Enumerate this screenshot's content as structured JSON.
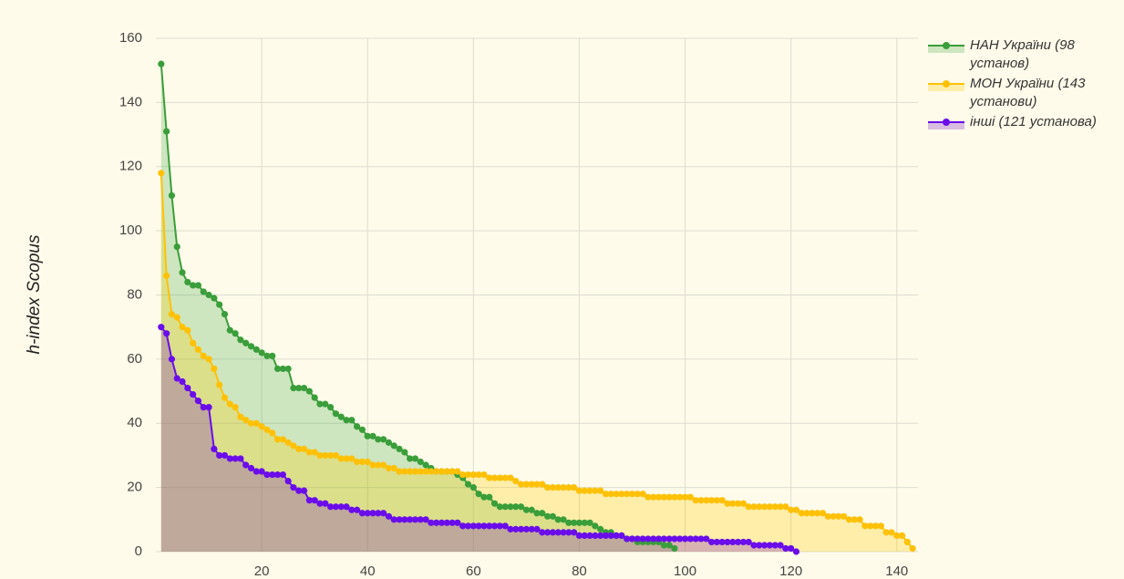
{
  "chart_data": {
    "type": "line",
    "y_label": "h-index Scopus",
    "xlim": [
      0,
      144
    ],
    "xticks": [
      20,
      40,
      60,
      80,
      100,
      120,
      140
    ],
    "ylim": [
      0,
      160
    ],
    "yticks": [
      0,
      20,
      40,
      60,
      80,
      100,
      120,
      140,
      160
    ],
    "grid": true,
    "legend": "right",
    "fill": true,
    "series": [
      {
        "name": "НАН України (98 установ)",
        "color": "#3a9e3a",
        "fill": "rgba(76,175,80,0.28)",
        "x": [
          1,
          2,
          3,
          4,
          5,
          6,
          7,
          8,
          9,
          10,
          11,
          12,
          13,
          14,
          15,
          16,
          17,
          18,
          19,
          20,
          21,
          22,
          23,
          24,
          25,
          26,
          27,
          28,
          29,
          30,
          31,
          32,
          33,
          34,
          35,
          36,
          37,
          38,
          39,
          40,
          41,
          42,
          43,
          44,
          45,
          46,
          47,
          48,
          49,
          50,
          51,
          52,
          53,
          54,
          55,
          56,
          57,
          58,
          59,
          60,
          61,
          62,
          63,
          64,
          65,
          66,
          67,
          68,
          69,
          70,
          71,
          72,
          73,
          74,
          75,
          76,
          77,
          78,
          79,
          80,
          81,
          82,
          83,
          84,
          85,
          86,
          87,
          88,
          89,
          90,
          91,
          92,
          93,
          94,
          95,
          96,
          97,
          98
        ],
        "values": [
          152,
          131,
          111,
          95,
          87,
          84,
          83,
          83,
          81,
          80,
          79,
          77,
          74,
          69,
          68,
          66,
          65,
          64,
          63,
          62,
          61,
          61,
          57,
          57,
          57,
          51,
          51,
          51,
          50,
          48,
          46,
          46,
          45,
          43,
          42,
          41,
          41,
          39,
          38,
          36,
          36,
          35,
          35,
          34,
          33,
          32,
          31,
          29,
          29,
          28,
          27,
          26,
          25,
          25,
          25,
          25,
          24,
          23,
          21,
          20,
          18,
          17,
          17,
          15,
          14,
          14,
          14,
          14,
          14,
          13,
          13,
          12,
          12,
          11,
          11,
          10,
          10,
          9,
          9,
          9,
          9,
          9,
          8,
          7,
          6,
          6,
          5,
          5,
          4,
          4,
          3,
          3,
          3,
          3,
          3,
          2,
          2,
          1
        ]
      },
      {
        "name": "МОН України (143 установи)",
        "color": "#ffc107",
        "fill": "rgba(255,204,0,0.28)",
        "x": [
          1,
          2,
          3,
          4,
          5,
          6,
          7,
          8,
          9,
          10,
          11,
          12,
          13,
          14,
          15,
          16,
          17,
          18,
          19,
          20,
          21,
          22,
          23,
          24,
          25,
          26,
          27,
          28,
          29,
          30,
          31,
          32,
          33,
          34,
          35,
          36,
          37,
          38,
          39,
          40,
          41,
          42,
          43,
          44,
          45,
          46,
          47,
          48,
          49,
          50,
          51,
          52,
          53,
          54,
          55,
          56,
          57,
          58,
          59,
          60,
          61,
          62,
          63,
          64,
          65,
          66,
          67,
          68,
          69,
          70,
          71,
          72,
          73,
          74,
          75,
          76,
          77,
          78,
          79,
          80,
          81,
          82,
          83,
          84,
          85,
          86,
          87,
          88,
          89,
          90,
          91,
          92,
          93,
          94,
          95,
          96,
          97,
          98,
          99,
          100,
          101,
          102,
          103,
          104,
          105,
          106,
          107,
          108,
          109,
          110,
          111,
          112,
          113,
          114,
          115,
          116,
          117,
          118,
          119,
          120,
          121,
          122,
          123,
          124,
          125,
          126,
          127,
          128,
          129,
          130,
          131,
          132,
          133,
          134,
          135,
          136,
          137,
          138,
          139,
          140,
          141,
          142,
          143
        ],
        "values": [
          118,
          86,
          74,
          73,
          70,
          69,
          65,
          63,
          61,
          60,
          57,
          52,
          48,
          46,
          45,
          42,
          41,
          40,
          40,
          39,
          38,
          37,
          35,
          35,
          34,
          33,
          32,
          32,
          31,
          31,
          30,
          30,
          30,
          30,
          29,
          29,
          29,
          28,
          28,
          28,
          27,
          27,
          27,
          26,
          26,
          25,
          25,
          25,
          25,
          25,
          25,
          25,
          25,
          25,
          25,
          25,
          25,
          24,
          24,
          24,
          24,
          24,
          23,
          23,
          23,
          23,
          23,
          22,
          21,
          21,
          21,
          21,
          21,
          20,
          20,
          20,
          20,
          20,
          20,
          19,
          19,
          19,
          19,
          19,
          18,
          18,
          18,
          18,
          18,
          18,
          18,
          18,
          17,
          17,
          17,
          17,
          17,
          17,
          17,
          17,
          17,
          16,
          16,
          16,
          16,
          16,
          16,
          15,
          15,
          15,
          15,
          14,
          14,
          14,
          14,
          14,
          14,
          14,
          14,
          13,
          13,
          12,
          12,
          12,
          12,
          12,
          11,
          11,
          11,
          11,
          10,
          10,
          10,
          8,
          8,
          8,
          8,
          6,
          6,
          5,
          5,
          3,
          1
        ]
      },
      {
        "name": "інші (121 установа)",
        "color": "#6a0dea",
        "fill": "rgba(120,30,200,0.28)",
        "x": [
          1,
          2,
          3,
          4,
          5,
          6,
          7,
          8,
          9,
          10,
          11,
          12,
          13,
          14,
          15,
          16,
          17,
          18,
          19,
          20,
          21,
          22,
          23,
          24,
          25,
          26,
          27,
          28,
          29,
          30,
          31,
          32,
          33,
          34,
          35,
          36,
          37,
          38,
          39,
          40,
          41,
          42,
          43,
          44,
          45,
          46,
          47,
          48,
          49,
          50,
          51,
          52,
          53,
          54,
          55,
          56,
          57,
          58,
          59,
          60,
          61,
          62,
          63,
          64,
          65,
          66,
          67,
          68,
          69,
          70,
          71,
          72,
          73,
          74,
          75,
          76,
          77,
          78,
          79,
          80,
          81,
          82,
          83,
          84,
          85,
          86,
          87,
          88,
          89,
          90,
          91,
          92,
          93,
          94,
          95,
          96,
          97,
          98,
          99,
          100,
          101,
          102,
          103,
          104,
          105,
          106,
          107,
          108,
          109,
          110,
          111,
          112,
          113,
          114,
          115,
          116,
          117,
          118,
          119,
          120,
          121
        ],
        "values": [
          70,
          68,
          60,
          54,
          53,
          51,
          49,
          47,
          45,
          45,
          32,
          30,
          30,
          29,
          29,
          29,
          27,
          26,
          25,
          25,
          24,
          24,
          24,
          24,
          22,
          20,
          19,
          19,
          16,
          16,
          15,
          15,
          14,
          14,
          14,
          14,
          13,
          13,
          12,
          12,
          12,
          12,
          12,
          11,
          10,
          10,
          10,
          10,
          10,
          10,
          10,
          9,
          9,
          9,
          9,
          9,
          9,
          8,
          8,
          8,
          8,
          8,
          8,
          8,
          8,
          8,
          7,
          7,
          7,
          7,
          7,
          7,
          6,
          6,
          6,
          6,
          6,
          6,
          6,
          5,
          5,
          5,
          5,
          5,
          5,
          5,
          5,
          5,
          4,
          4,
          4,
          4,
          4,
          4,
          4,
          4,
          4,
          4,
          4,
          4,
          4,
          4,
          4,
          4,
          3,
          3,
          3,
          3,
          3,
          3,
          3,
          3,
          2,
          2,
          2,
          2,
          2,
          2,
          1,
          1,
          0
        ]
      }
    ]
  }
}
